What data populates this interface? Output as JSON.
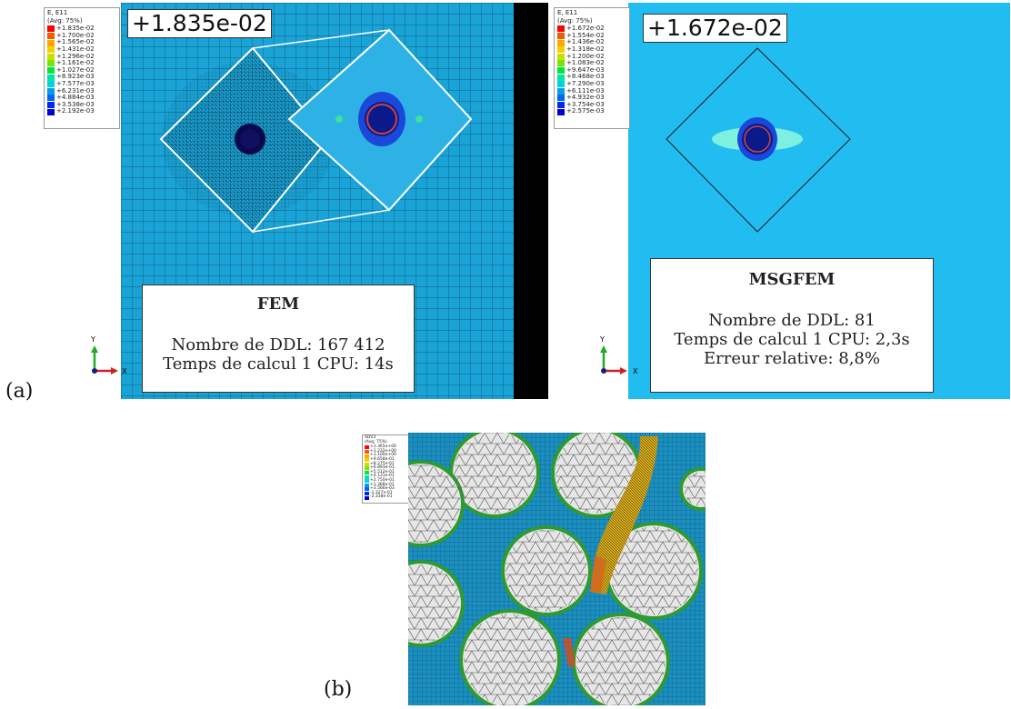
{
  "labels": {
    "a": "(a)",
    "b": "(b)"
  },
  "fem": {
    "legend_title": "E, E11",
    "legend_subtitle": "(Avg: 75%)",
    "legend_values": [
      "+1.835e-02",
      "+1.700e-02",
      "+1.565e-02",
      "+1.431e-02",
      "+1.296e-02",
      "+1.161e-02",
      "+1.027e-02",
      "+8.923e-03",
      "+7.577e-03",
      "+6.231e-03",
      "+4.884e-03",
      "+3.538e-03",
      "+2.192e-03"
    ],
    "max_value": "+1.835e-02",
    "box_title": "FEM",
    "box_lines": [
      "Nombre de DDL: 167 412",
      "Temps de calcul 1 CPU: 14s"
    ]
  },
  "msgfem": {
    "legend_title": "E, E11",
    "legend_subtitle": "(Avg: 75%)",
    "legend_values": [
      "+1.672e-02",
      "+1.554e-02",
      "+1.436e-02",
      "+1.318e-02",
      "+1.200e-02",
      "+1.083e-02",
      "+9.647e-03",
      "+8.468e-03",
      "+7.290e-03",
      "+6.111e-03",
      "+4.932e-03",
      "+3.754e-03",
      "+2.575e-03"
    ],
    "max_value": "+1.672e-02",
    "box_title": "MSGFEM",
    "box_lines": [
      "Nombre de DDL: 81",
      "Temps de calcul 1 CPU: 2,3s",
      "Erreur relative: 8,8%"
    ]
  },
  "panel_b": {
    "legend_title": "SDV3",
    "legend_subtitle": "(Avg: 75%)",
    "legend_values": [
      "+1.365e+00",
      "+1.232e+00",
      "+1.100e+00",
      "+9.658e-01",
      "+8.275e-01",
      "+6.893e-01",
      "+5.512e-01",
      "+4.131e-01",
      "+2.750e-01",
      "+1.368e-01",
      "+3.566e-03",
      "-1.327e-01",
      "-2.338e-01"
    ]
  },
  "triad": {
    "y_label": "Y",
    "x_label": "X"
  },
  "colors": {
    "mesh_bg": "#1aa3d6",
    "msgfem_bg": "#22bdf0",
    "divider": "#000000",
    "scale": [
      "#ff0000",
      "#ff5400",
      "#ffa800",
      "#f5d000",
      "#c8e000",
      "#78e600",
      "#00e63a",
      "#00e6a0",
      "#00d2e6",
      "#00a0f0",
      "#0064f5",
      "#0028f5",
      "#0000d2"
    ]
  }
}
